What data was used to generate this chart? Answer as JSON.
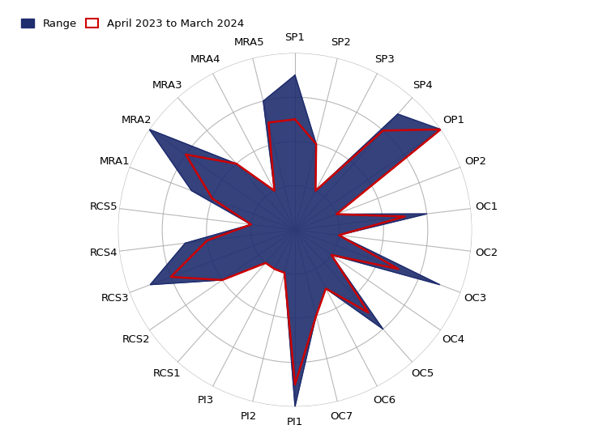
{
  "categories": [
    "SP1",
    "SP2",
    "SP3",
    "SP4",
    "OP1",
    "OP2",
    "OC1",
    "OC2",
    "OC3",
    "OC4",
    "OC5",
    "OC6",
    "OC7",
    "PI1",
    "PI2",
    "PI3",
    "RCS1",
    "RCS2",
    "RCS3",
    "RCS4",
    "RCS5",
    "MRA1",
    "MRA2",
    "MRA3",
    "MRA4",
    "MRA5"
  ],
  "range_values": [
    3.5,
    2.0,
    1.0,
    3.5,
    4.0,
    1.0,
    3.0,
    1.0,
    3.5,
    1.0,
    3.0,
    1.5,
    2.0,
    4.0,
    1.0,
    1.0,
    1.0,
    2.0,
    3.5,
    2.5,
    1.0,
    2.5,
    4.0,
    2.0,
    1.0,
    3.0
  ],
  "actual_values": [
    2.5,
    2.0,
    1.0,
    3.0,
    4.0,
    1.0,
    2.5,
    1.0,
    2.5,
    1.0,
    2.5,
    1.5,
    2.0,
    3.5,
    1.0,
    1.0,
    1.0,
    2.0,
    3.0,
    2.0,
    1.0,
    2.0,
    3.0,
    2.0,
    1.0,
    2.5
  ],
  "range_color": "#1f2d6e",
  "actual_color": "#cc0000",
  "range_alpha": 0.9,
  "max_val": 4,
  "gridline_color": "#b0b0b0",
  "background_color": "#ffffff",
  "legend_range_label": "Range",
  "legend_actual_label": "April 2023 to March 2024",
  "label_fontsize": 9.5
}
